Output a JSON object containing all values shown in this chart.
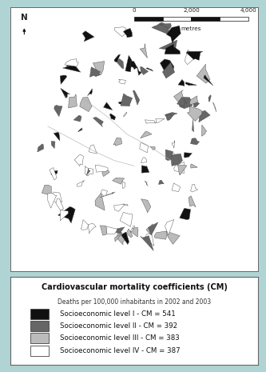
{
  "bg_color": "#b0d4d4",
  "map_bg": "#ffffff",
  "fig_width": 3.33,
  "fig_height": 4.65,
  "dpi": 100,
  "title_bold": "Cardiovascular mortality coefficients (CM)",
  "subtitle": "Deaths per 100,000 inhabitants in 2002 and 2003",
  "legend_entries": [
    {
      "label": "Socioeconomic level I - CM = 541",
      "color": "#111111"
    },
    {
      "label": "Socioeconomic level II - CM = 392",
      "color": "#666666"
    },
    {
      "label": "Socioeconomic level III - CM = 383",
      "color": "#bbbbbb"
    },
    {
      "label": "Socioeconomic level IV - CM = 387",
      "color": "#ffffff"
    }
  ],
  "scalebar_text": [
    "0",
    "2,000",
    "4,000"
  ],
  "scalebar_label": "metres",
  "north_arrow_text": "N",
  "title_fontsize": 7.0,
  "subtitle_fontsize": 5.5,
  "legend_fontsize": 6.2,
  "scalebar_fontsize": 5.2,
  "north_fontsize": 7.5,
  "map_border_color": "#666666",
  "legend_border_color": "#666666",
  "seed": 42
}
